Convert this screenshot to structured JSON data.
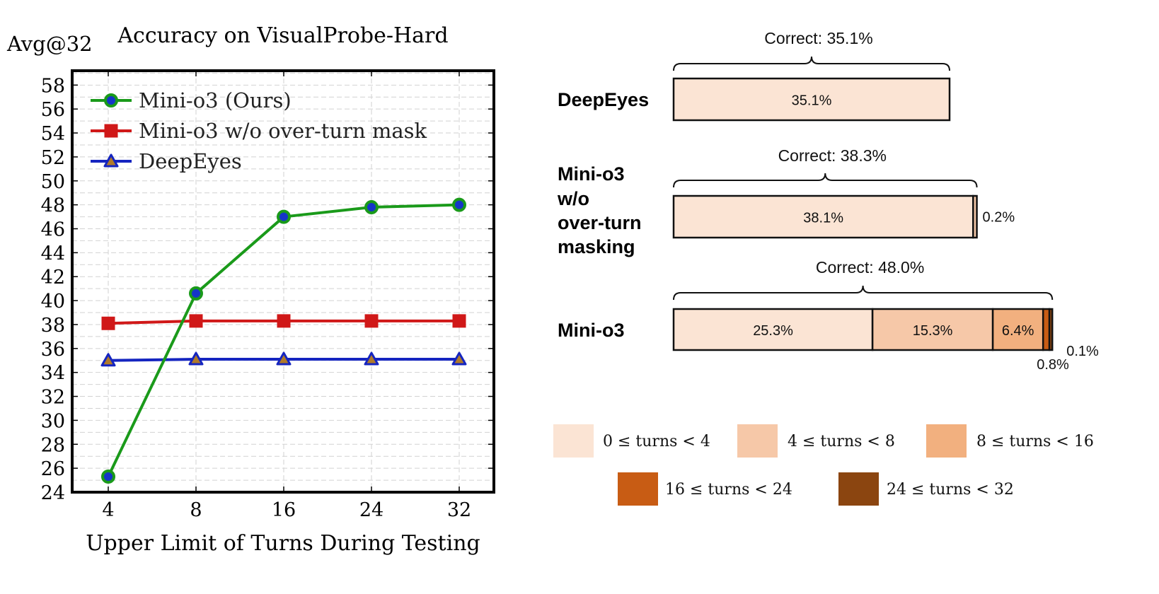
{
  "chart_data": [
    {
      "type": "line",
      "title": "Accuracy on VisualProbe-Hard",
      "ylabel": "Avg@32",
      "xlabel": "Upper Limit of Turns During Testing",
      "categories": [
        "4",
        "8",
        "16",
        "24",
        "32"
      ],
      "yticks": [
        "24",
        "26",
        "28",
        "30",
        "32",
        "34",
        "36",
        "38",
        "40",
        "42",
        "44",
        "46",
        "48",
        "50",
        "52",
        "54",
        "56",
        "58"
      ],
      "ylim": [
        24,
        59.2
      ],
      "grid": true,
      "legend_position": "top-left",
      "series": [
        {
          "name": "Mini-o3 (Ours)",
          "values": [
            25.3,
            40.6,
            47.0,
            47.8,
            48.0
          ],
          "color": "#1a9a1a",
          "marker": "circle",
          "marker_fill": "#1535c8"
        },
        {
          "name": "Mini-o3 w/o over-turn mask",
          "values": [
            38.1,
            38.3,
            38.3,
            38.3,
            38.3
          ],
          "color": "#d01818",
          "marker": "square",
          "marker_fill": "#d01818"
        },
        {
          "name": "DeepEyes",
          "values": [
            35.0,
            35.1,
            35.1,
            35.1,
            35.1
          ],
          "color": "#1525c0",
          "marker": "triangle",
          "marker_fill": "#b07a2a"
        }
      ]
    },
    {
      "type": "bar",
      "orientation": "horizontal-stacked",
      "categories": [
        "DeepEyes",
        "Mini-o3 w/o over-turn masking",
        "Mini-o3"
      ],
      "category_lines": [
        [
          "DeepEyes"
        ],
        [
          "Mini-o3",
          "w/o",
          "over-turn",
          "masking"
        ],
        [
          "Mini-o3"
        ]
      ],
      "correct_labels": [
        "Correct: 35.1%",
        "Correct: 38.3%",
        "Correct: 48.0%"
      ],
      "series": [
        {
          "name": "0 ≤ turns < 4",
          "color": "#fbe4d4",
          "values": [
            35.1,
            38.1,
            25.3
          ],
          "labels": [
            "35.1%",
            "38.1%",
            "25.3%"
          ]
        },
        {
          "name": "4 ≤ turns < 8",
          "color": "#f6c8a8",
          "values": [
            0,
            0.2,
            15.3
          ],
          "labels": [
            "",
            "0.2%",
            "15.3%"
          ]
        },
        {
          "name": "8 ≤ turns < 16",
          "color": "#f2b07f",
          "values": [
            0,
            0,
            6.4
          ],
          "labels": [
            "",
            "",
            "6.4%"
          ]
        },
        {
          "name": "16 ≤ turns < 24",
          "color": "#c85c14",
          "values": [
            0,
            0,
            0.8
          ],
          "labels": [
            "",
            "",
            "0.8%"
          ]
        },
        {
          "name": "24 ≤ turns < 32",
          "color": "#8b4510",
          "values": [
            0,
            0,
            0.1
          ],
          "labels": [
            "",
            "",
            "0.1%"
          ]
        }
      ]
    }
  ]
}
